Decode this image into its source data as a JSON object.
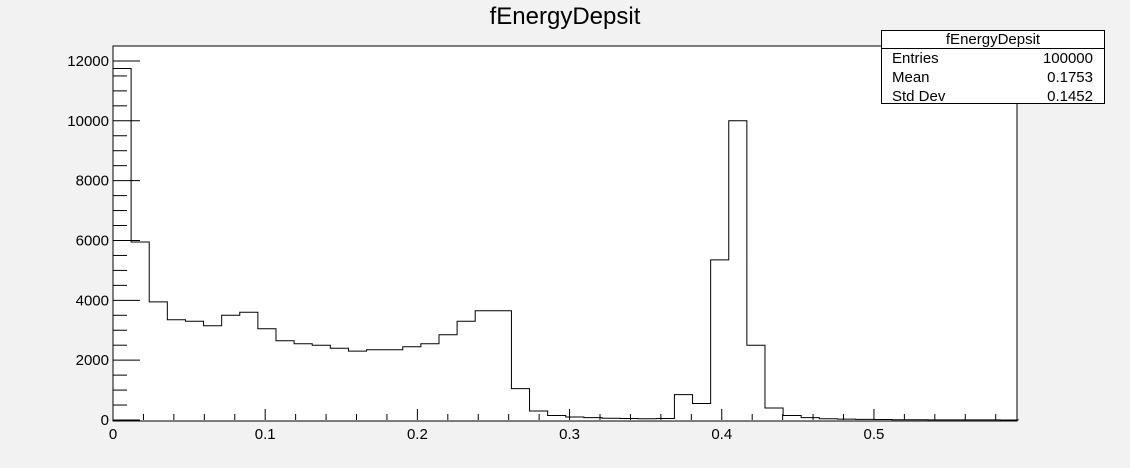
{
  "chart_data": {
    "type": "bar",
    "title": "fEnergyDepsit",
    "xlabel": "",
    "ylabel": "",
    "xlim": [
      0,
      0.594
    ],
    "ylim": [
      0,
      12500
    ],
    "bin_width": 0.0119,
    "values": [
      11750,
      5950,
      3950,
      3350,
      3300,
      3150,
      3500,
      3600,
      3050,
      2650,
      2550,
      2500,
      2400,
      2300,
      2350,
      2350,
      2450,
      2550,
      2850,
      3300,
      3650,
      3650,
      1050,
      300,
      150,
      100,
      80,
      60,
      50,
      40,
      50,
      850,
      550,
      5350,
      10000,
      2500,
      400,
      150,
      80,
      40,
      30,
      20,
      15,
      10,
      8,
      6,
      5,
      4,
      3,
      2
    ],
    "x_tick_labels": [
      "0",
      "0.1",
      "0.2",
      "0.3",
      "0.4",
      "0.5"
    ],
    "x_ticks": [
      0,
      0.1,
      0.2,
      0.3,
      0.4,
      0.5
    ],
    "y_tick_labels": [
      "0",
      "2000",
      "4000",
      "6000",
      "8000",
      "10000",
      "12000"
    ],
    "y_ticks": [
      0,
      2000,
      4000,
      6000,
      8000,
      10000,
      12000
    ],
    "grid": false,
    "legend": "top-right"
  },
  "stats_box": {
    "title": "fEnergyDepsit",
    "rows": [
      {
        "label": "Entries",
        "value": "100000"
      },
      {
        "label": "Mean",
        "value": "0.1753"
      },
      {
        "label": "Std Dev",
        "value": "0.1452"
      }
    ]
  }
}
